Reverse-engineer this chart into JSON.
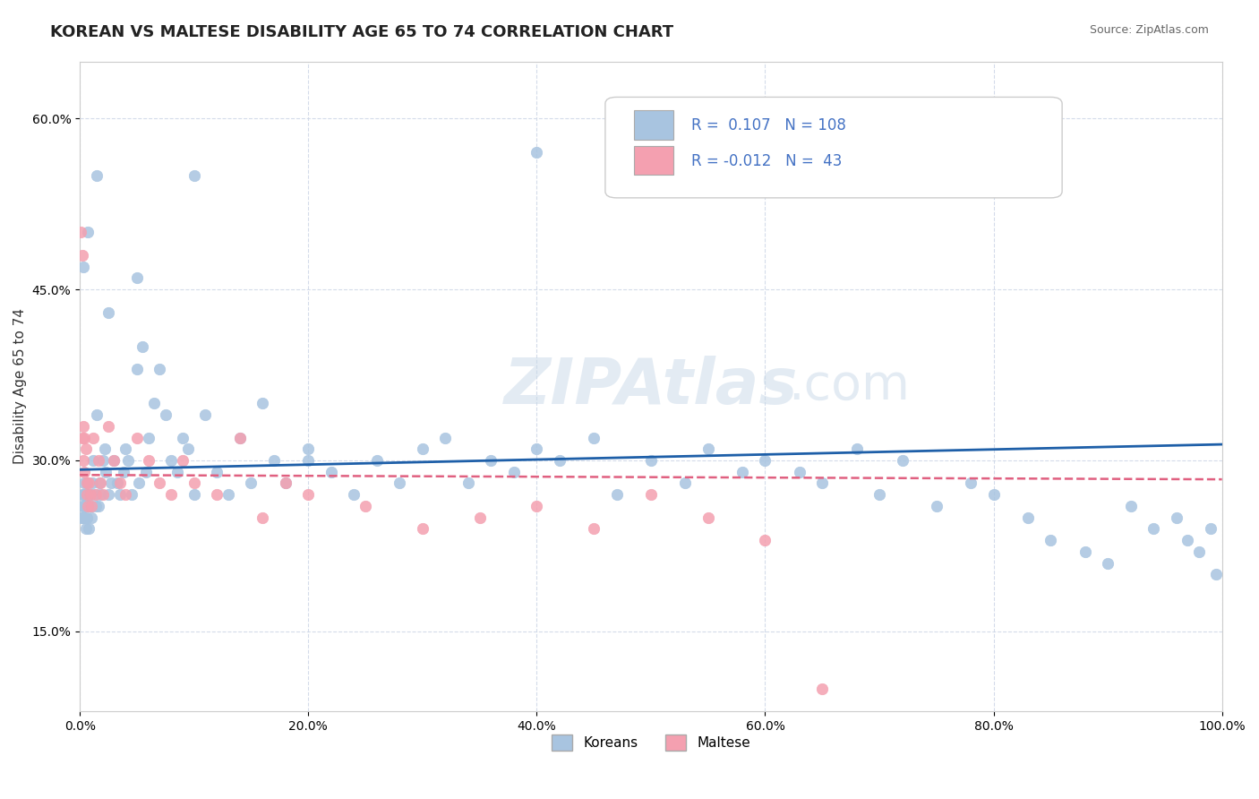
{
  "title": "KOREAN VS MALTESE DISABILITY AGE 65 TO 74 CORRELATION CHART",
  "source_text": "Source: ZipAtlas.com",
  "xlabel_ticks": [
    "0.0%",
    "20.0%",
    "40.0%",
    "60.0%",
    "80.0%",
    "100.0%"
  ],
  "ylabel_ticks": [
    "15.0%",
    "30.0%",
    "45.0%",
    "60.0%"
  ],
  "ylabel_label": "Disability Age 65 to 74",
  "legend_bottom": [
    "Koreans",
    "Maltese"
  ],
  "korean_R": 0.107,
  "korean_N": 108,
  "maltese_R": -0.012,
  "maltese_N": 43,
  "korean_color": "#a8c4e0",
  "maltese_color": "#f4a0b0",
  "korean_line_color": "#1e5fa8",
  "maltese_line_color": "#e06080",
  "legend_text_color": "#4472c4",
  "background_color": "#ffffff",
  "grid_color": "#d0d8e8",
  "watermark_color": "#c8d8e8",
  "title_fontsize": 13,
  "axis_label_fontsize": 11,
  "tick_fontsize": 10,
  "xlim": [
    0,
    1.0
  ],
  "ylim": [
    0.08,
    0.65
  ],
  "korean_x": [
    0.001,
    0.002,
    0.002,
    0.003,
    0.003,
    0.003,
    0.004,
    0.004,
    0.005,
    0.005,
    0.005,
    0.006,
    0.006,
    0.006,
    0.007,
    0.007,
    0.008,
    0.008,
    0.009,
    0.01,
    0.01,
    0.011,
    0.012,
    0.013,
    0.014,
    0.015,
    0.016,
    0.017,
    0.018,
    0.02,
    0.022,
    0.023,
    0.025,
    0.027,
    0.03,
    0.033,
    0.035,
    0.038,
    0.04,
    0.042,
    0.045,
    0.05,
    0.052,
    0.055,
    0.058,
    0.06,
    0.065,
    0.07,
    0.075,
    0.08,
    0.085,
    0.09,
    0.095,
    0.1,
    0.11,
    0.12,
    0.13,
    0.14,
    0.15,
    0.16,
    0.17,
    0.18,
    0.2,
    0.22,
    0.24,
    0.26,
    0.28,
    0.3,
    0.32,
    0.34,
    0.36,
    0.38,
    0.4,
    0.42,
    0.45,
    0.47,
    0.5,
    0.53,
    0.55,
    0.58,
    0.6,
    0.63,
    0.65,
    0.68,
    0.7,
    0.72,
    0.75,
    0.78,
    0.8,
    0.83,
    0.85,
    0.88,
    0.9,
    0.92,
    0.94,
    0.96,
    0.97,
    0.98,
    0.99,
    0.995,
    0.003,
    0.007,
    0.015,
    0.025,
    0.05,
    0.1,
    0.2,
    0.4
  ],
  "korean_y": [
    0.25,
    0.27,
    0.26,
    0.26,
    0.25,
    0.27,
    0.28,
    0.25,
    0.26,
    0.24,
    0.27,
    0.25,
    0.26,
    0.28,
    0.26,
    0.27,
    0.24,
    0.26,
    0.27,
    0.25,
    0.26,
    0.28,
    0.3,
    0.27,
    0.26,
    0.34,
    0.26,
    0.28,
    0.27,
    0.3,
    0.31,
    0.29,
    0.27,
    0.28,
    0.3,
    0.28,
    0.27,
    0.29,
    0.31,
    0.3,
    0.27,
    0.38,
    0.28,
    0.4,
    0.29,
    0.32,
    0.35,
    0.38,
    0.34,
    0.3,
    0.29,
    0.32,
    0.31,
    0.27,
    0.34,
    0.29,
    0.27,
    0.32,
    0.28,
    0.35,
    0.3,
    0.28,
    0.31,
    0.29,
    0.27,
    0.3,
    0.28,
    0.31,
    0.32,
    0.28,
    0.3,
    0.29,
    0.31,
    0.3,
    0.32,
    0.27,
    0.3,
    0.28,
    0.31,
    0.29,
    0.3,
    0.29,
    0.28,
    0.31,
    0.27,
    0.3,
    0.26,
    0.28,
    0.27,
    0.25,
    0.23,
    0.22,
    0.21,
    0.26,
    0.24,
    0.25,
    0.23,
    0.22,
    0.24,
    0.2,
    0.47,
    0.5,
    0.55,
    0.43,
    0.46,
    0.55,
    0.3,
    0.57
  ],
  "maltese_x": [
    0.001,
    0.002,
    0.002,
    0.003,
    0.003,
    0.004,
    0.004,
    0.005,
    0.006,
    0.006,
    0.007,
    0.008,
    0.009,
    0.01,
    0.012,
    0.014,
    0.016,
    0.018,
    0.02,
    0.025,
    0.03,
    0.035,
    0.04,
    0.05,
    0.06,
    0.07,
    0.08,
    0.09,
    0.1,
    0.12,
    0.14,
    0.16,
    0.18,
    0.2,
    0.25,
    0.3,
    0.35,
    0.4,
    0.45,
    0.5,
    0.55,
    0.6,
    0.65
  ],
  "maltese_y": [
    0.5,
    0.48,
    0.32,
    0.33,
    0.3,
    0.29,
    0.32,
    0.31,
    0.28,
    0.27,
    0.26,
    0.28,
    0.27,
    0.26,
    0.32,
    0.27,
    0.3,
    0.28,
    0.27,
    0.33,
    0.3,
    0.28,
    0.27,
    0.32,
    0.3,
    0.28,
    0.27,
    0.3,
    0.28,
    0.27,
    0.32,
    0.25,
    0.28,
    0.27,
    0.26,
    0.24,
    0.25,
    0.26,
    0.24,
    0.27,
    0.25,
    0.23,
    0.1
  ]
}
